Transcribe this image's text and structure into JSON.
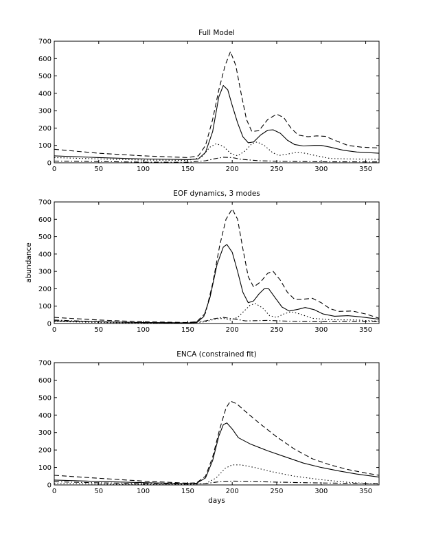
{
  "figure": {
    "shared_ylabel": "abundance"
  },
  "chart_data": [
    {
      "type": "line",
      "title": "Full Model",
      "xlabel": "",
      "ylabel": "",
      "xlim": [
        0,
        365
      ],
      "ylim": [
        0,
        700
      ],
      "xticks": [
        0,
        50,
        100,
        150,
        200,
        250,
        300,
        350
      ],
      "yticks": [
        0,
        100,
        200,
        300,
        400,
        500,
        600,
        700
      ],
      "grid": false,
      "series": [
        {
          "name": "solid",
          "style": "solid",
          "points": [
            [
              0,
              40
            ],
            [
              50,
              30
            ],
            [
              100,
              22
            ],
            [
              150,
              18
            ],
            [
              162,
              22
            ],
            [
              170,
              60
            ],
            [
              178,
              180
            ],
            [
              185,
              380
            ],
            [
              190,
              445
            ],
            [
              195,
              420
            ],
            [
              200,
              330
            ],
            [
              206,
              230
            ],
            [
              212,
              150
            ],
            [
              218,
              115
            ],
            [
              224,
              120
            ],
            [
              232,
              160
            ],
            [
              240,
              188
            ],
            [
              246,
              190
            ],
            [
              254,
              170
            ],
            [
              262,
              130
            ],
            [
              270,
              105
            ],
            [
              280,
              97
            ],
            [
              292,
              100
            ],
            [
              300,
              100
            ],
            [
              310,
              90
            ],
            [
              325,
              72
            ],
            [
              340,
              62
            ],
            [
              365,
              55
            ]
          ]
        },
        {
          "name": "dashed",
          "style": "dashed",
          "points": [
            [
              0,
              78
            ],
            [
              50,
              55
            ],
            [
              100,
              40
            ],
            [
              150,
              30
            ],
            [
              162,
              40
            ],
            [
              170,
              100
            ],
            [
              178,
              250
            ],
            [
              185,
              420
            ],
            [
              192,
              560
            ],
            [
              198,
              640
            ],
            [
              204,
              560
            ],
            [
              210,
              400
            ],
            [
              216,
              250
            ],
            [
              222,
              180
            ],
            [
              230,
              185
            ],
            [
              240,
              250
            ],
            [
              250,
              280
            ],
            [
              258,
              260
            ],
            [
              266,
              200
            ],
            [
              274,
              160
            ],
            [
              285,
              150
            ],
            [
              295,
              155
            ],
            [
              305,
              152
            ],
            [
              315,
              130
            ],
            [
              330,
              100
            ],
            [
              345,
              90
            ],
            [
              365,
              85
            ]
          ]
        },
        {
          "name": "dotted",
          "style": "dotted",
          "points": [
            [
              0,
              30
            ],
            [
              50,
              22
            ],
            [
              100,
              16
            ],
            [
              150,
              14
            ],
            [
              165,
              30
            ],
            [
              175,
              90
            ],
            [
              182,
              110
            ],
            [
              190,
              95
            ],
            [
              198,
              55
            ],
            [
              206,
              40
            ],
            [
              215,
              70
            ],
            [
              222,
              110
            ],
            [
              228,
              120
            ],
            [
              236,
              100
            ],
            [
              245,
              60
            ],
            [
              252,
              42
            ],
            [
              262,
              50
            ],
            [
              272,
              60
            ],
            [
              282,
              55
            ],
            [
              295,
              40
            ],
            [
              310,
              25
            ],
            [
              330,
              22
            ],
            [
              365,
              20
            ]
          ]
        },
        {
          "name": "dashdot",
          "style": "dashdot",
          "points": [
            [
              0,
              10
            ],
            [
              50,
              7
            ],
            [
              100,
              4
            ],
            [
              150,
              3
            ],
            [
              170,
              12
            ],
            [
              182,
              25
            ],
            [
              190,
              32
            ],
            [
              200,
              30
            ],
            [
              210,
              20
            ],
            [
              230,
              12
            ],
            [
              260,
              8
            ],
            [
              300,
              6
            ],
            [
              365,
              5
            ]
          ]
        }
      ]
    },
    {
      "type": "line",
      "title": "EOF dynamics, 3 modes",
      "xlabel": "",
      "ylabel": "abundance",
      "xlim": [
        0,
        365
      ],
      "ylim": [
        0,
        700
      ],
      "xticks": [
        0,
        50,
        100,
        150,
        200,
        250,
        300,
        350
      ],
      "yticks": [
        0,
        100,
        200,
        300,
        400,
        500,
        600,
        700
      ],
      "grid": false,
      "series": [
        {
          "name": "solid",
          "style": "solid",
          "points": [
            [
              0,
              15
            ],
            [
              50,
              10
            ],
            [
              100,
              6
            ],
            [
              150,
              4
            ],
            [
              160,
              5
            ],
            [
              168,
              40
            ],
            [
              175,
              150
            ],
            [
              183,
              340
            ],
            [
              190,
              440
            ],
            [
              194,
              455
            ],
            [
              200,
              410
            ],
            [
              206,
              300
            ],
            [
              212,
              180
            ],
            [
              218,
              120
            ],
            [
              224,
              130
            ],
            [
              230,
              170
            ],
            [
              236,
              200
            ],
            [
              241,
              200
            ],
            [
              248,
              150
            ],
            [
              256,
              95
            ],
            [
              264,
              72
            ],
            [
              274,
              82
            ],
            [
              282,
              92
            ],
            [
              292,
              80
            ],
            [
              302,
              55
            ],
            [
              315,
              42
            ],
            [
              330,
              45
            ],
            [
              345,
              38
            ],
            [
              365,
              25
            ]
          ]
        },
        {
          "name": "dashed",
          "style": "dashed",
          "points": [
            [
              0,
              35
            ],
            [
              50,
              20
            ],
            [
              100,
              10
            ],
            [
              150,
              6
            ],
            [
              160,
              10
            ],
            [
              170,
              60
            ],
            [
              178,
              230
            ],
            [
              186,
              450
            ],
            [
              193,
              600
            ],
            [
              200,
              660
            ],
            [
              206,
              600
            ],
            [
              212,
              430
            ],
            [
              218,
              270
            ],
            [
              224,
              210
            ],
            [
              232,
              240
            ],
            [
              240,
              290
            ],
            [
              246,
              300
            ],
            [
              254,
              250
            ],
            [
              262,
              180
            ],
            [
              270,
              140
            ],
            [
              280,
              140
            ],
            [
              290,
              145
            ],
            [
              300,
              120
            ],
            [
              310,
              85
            ],
            [
              320,
              70
            ],
            [
              335,
              72
            ],
            [
              350,
              55
            ],
            [
              365,
              30
            ]
          ]
        },
        {
          "name": "dotted",
          "style": "dotted",
          "points": [
            [
              0,
              12
            ],
            [
              50,
              6
            ],
            [
              100,
              3
            ],
            [
              150,
              2
            ],
            [
              170,
              10
            ],
            [
              180,
              25
            ],
            [
              190,
              30
            ],
            [
              198,
              20
            ],
            [
              206,
              35
            ],
            [
              214,
              75
            ],
            [
              220,
              105
            ],
            [
              226,
              115
            ],
            [
              234,
              90
            ],
            [
              242,
              45
            ],
            [
              250,
              35
            ],
            [
              258,
              55
            ],
            [
              266,
              68
            ],
            [
              276,
              55
            ],
            [
              290,
              30
            ],
            [
              310,
              22
            ],
            [
              340,
              20
            ],
            [
              365,
              14
            ]
          ]
        },
        {
          "name": "dashdot",
          "style": "dashdot",
          "points": [
            [
              0,
              20
            ],
            [
              50,
              10
            ],
            [
              100,
              5
            ],
            [
              150,
              3
            ],
            [
              170,
              15
            ],
            [
              180,
              28
            ],
            [
              190,
              35
            ],
            [
              200,
              28
            ],
            [
              215,
              15
            ],
            [
              240,
              18
            ],
            [
              270,
              12
            ],
            [
              300,
              10
            ],
            [
              330,
              12
            ],
            [
              365,
              10
            ]
          ]
        }
      ]
    },
    {
      "type": "line",
      "title": "ENCA (constrained fit)",
      "xlabel": "days",
      "ylabel": "",
      "xlim": [
        0,
        365
      ],
      "ylim": [
        0,
        700
      ],
      "xticks": [
        0,
        50,
        100,
        150,
        200,
        250,
        300,
        350
      ],
      "yticks": [
        0,
        100,
        200,
        300,
        400,
        500,
        600,
        700
      ],
      "grid": false,
      "series": [
        {
          "name": "solid",
          "style": "solid",
          "points": [
            [
              0,
              28
            ],
            [
              50,
              20
            ],
            [
              100,
              13
            ],
            [
              150,
              8
            ],
            [
              160,
              10
            ],
            [
              170,
              40
            ],
            [
              178,
              140
            ],
            [
              185,
              280
            ],
            [
              190,
              345
            ],
            [
              194,
              355
            ],
            [
              200,
              320
            ],
            [
              207,
              270
            ],
            [
              220,
              235
            ],
            [
              240,
              195
            ],
            [
              260,
              160
            ],
            [
              280,
              125
            ],
            [
              300,
              100
            ],
            [
              320,
              80
            ],
            [
              340,
              62
            ],
            [
              365,
              45
            ]
          ]
        },
        {
          "name": "dashed",
          "style": "dashed",
          "points": [
            [
              0,
              55
            ],
            [
              50,
              38
            ],
            [
              100,
              22
            ],
            [
              150,
              10
            ],
            [
              160,
              12
            ],
            [
              170,
              50
            ],
            [
              178,
              160
            ],
            [
              186,
              320
            ],
            [
              193,
              440
            ],
            [
              198,
              480
            ],
            [
              205,
              465
            ],
            [
              215,
              420
            ],
            [
              230,
              355
            ],
            [
              250,
              275
            ],
            [
              270,
              205
            ],
            [
              290,
              150
            ],
            [
              310,
              115
            ],
            [
              330,
              88
            ],
            [
              350,
              68
            ],
            [
              365,
              55
            ]
          ]
        },
        {
          "name": "dotted",
          "style": "dotted",
          "points": [
            [
              0,
              8
            ],
            [
              50,
              5
            ],
            [
              100,
              3
            ],
            [
              150,
              2
            ],
            [
              170,
              8
            ],
            [
              182,
              40
            ],
            [
              192,
              95
            ],
            [
              200,
              115
            ],
            [
              210,
              115
            ],
            [
              225,
              100
            ],
            [
              245,
              75
            ],
            [
              270,
              50
            ],
            [
              300,
              30
            ],
            [
              330,
              15
            ],
            [
              365,
              5
            ]
          ]
        },
        {
          "name": "dashdot",
          "style": "dashdot",
          "points": [
            [
              0,
              18
            ],
            [
              50,
              12
            ],
            [
              100,
              8
            ],
            [
              150,
              5
            ],
            [
              170,
              8
            ],
            [
              185,
              18
            ],
            [
              200,
              22
            ],
            [
              220,
              20
            ],
            [
              250,
              16
            ],
            [
              280,
              13
            ],
            [
              320,
              10
            ],
            [
              365,
              8
            ]
          ]
        }
      ]
    }
  ]
}
